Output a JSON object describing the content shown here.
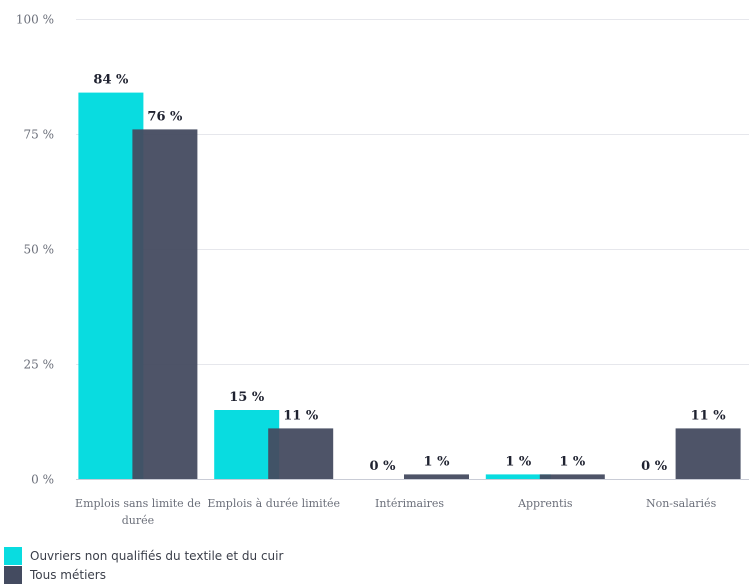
{
  "chart_data": {
    "type": "bar",
    "categories": [
      [
        "Emplois sans limite de",
        "durée"
      ],
      [
        "Emplois à durée limitée"
      ],
      [
        "Intérimaires"
      ],
      [
        "Apprentis"
      ],
      [
        "Non-salariés"
      ]
    ],
    "series": [
      {
        "name": "Ouvriers non qualifiés du textile et du cuir",
        "color": "#09dce0",
        "values": [
          84,
          15,
          0,
          1,
          0
        ],
        "labels": [
          "84 %",
          "15 %",
          "0 %",
          "1 %",
          "0 %"
        ]
      },
      {
        "name": "Tous métiers",
        "color": "#444b60",
        "values": [
          76,
          11,
          1,
          1,
          11
        ],
        "labels": [
          "76 %",
          "11 %",
          "1 %",
          "1 %",
          "11 %"
        ]
      }
    ],
    "ylim": [
      0,
      100
    ],
    "yticks": [
      0,
      25,
      50,
      75,
      100
    ],
    "ytick_labels": [
      "0 %",
      "25 %",
      "50 %",
      "75 %",
      "100 %"
    ],
    "grid": true,
    "legend_position": "bottom-left",
    "title": "",
    "xlabel": "",
    "ylabel": ""
  }
}
